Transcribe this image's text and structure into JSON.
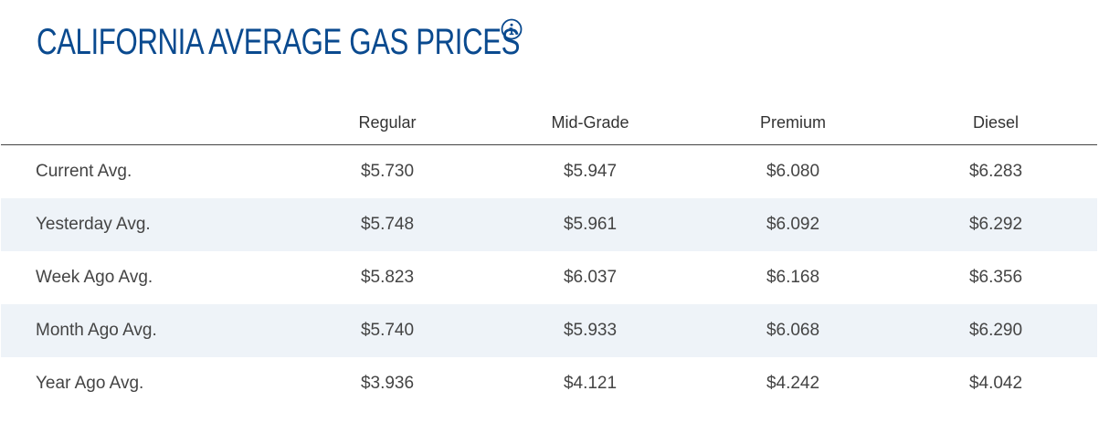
{
  "title": "CALIFORNIA AVERAGE GAS PRICES",
  "info_icon": "info-circle-icon",
  "colors": {
    "title": "#0a4a8f",
    "stripe": "#eef3f8",
    "text": "#444444"
  },
  "table": {
    "columns": [
      "",
      "Regular",
      "Mid-Grade",
      "Premium",
      "Diesel"
    ],
    "rows": [
      {
        "label": "Current Avg.",
        "regular": "$5.730",
        "mid_grade": "$5.947",
        "premium": "$6.080",
        "diesel": "$6.283"
      },
      {
        "label": "Yesterday Avg.",
        "regular": "$5.748",
        "mid_grade": "$5.961",
        "premium": "$6.092",
        "diesel": "$6.292"
      },
      {
        "label": "Week Ago Avg.",
        "regular": "$5.823",
        "mid_grade": "$6.037",
        "premium": "$6.168",
        "diesel": "$6.356"
      },
      {
        "label": "Month Ago Avg.",
        "regular": "$5.740",
        "mid_grade": "$5.933",
        "premium": "$6.068",
        "diesel": "$6.290"
      },
      {
        "label": "Year Ago Avg.",
        "regular": "$3.936",
        "mid_grade": "$4.121",
        "premium": "$4.242",
        "diesel": "$4.042"
      }
    ]
  }
}
